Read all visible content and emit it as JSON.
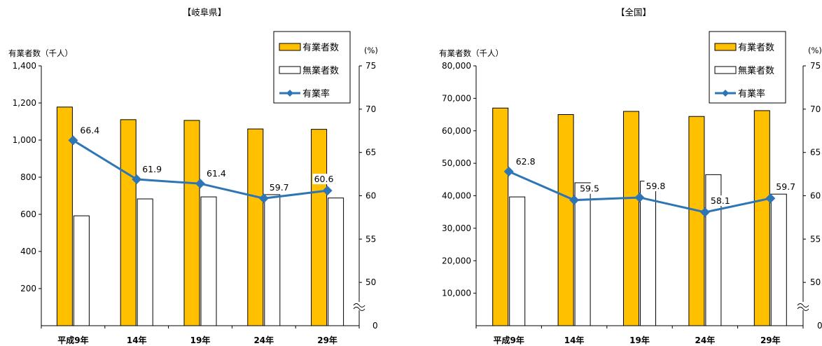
{
  "chart_data": [
    {
      "type": "bar",
      "title": "【岐阜県】",
      "ylabel": "有業者数（千人）",
      "y2label": "(%)",
      "categories": [
        "平成9年",
        "14年",
        "19年",
        "24年",
        "29年"
      ],
      "ylim": [
        0,
        1400
      ],
      "yticks": [
        200,
        400,
        600,
        800,
        1000,
        1200,
        1400
      ],
      "ytick_labels": [
        "200",
        "400",
        "600",
        "800",
        "1,000",
        "1,200",
        "1,400"
      ],
      "y2_range": [
        45,
        75
      ],
      "y2ticks": [
        50,
        55,
        60,
        65,
        70,
        75
      ],
      "y2_zero_label": "0",
      "series": [
        {
          "name": "有業者数",
          "kind": "bar",
          "color": "#FFC000",
          "values": [
            1178,
            1110,
            1106,
            1060,
            1058
          ]
        },
        {
          "name": "無業者数",
          "kind": "bar",
          "color": "#FFFFFF",
          "values": [
            592,
            683,
            694,
            706,
            688
          ]
        },
        {
          "name": "有業率",
          "kind": "line",
          "color": "#2E75B6",
          "values": [
            66.4,
            61.9,
            61.4,
            59.7,
            60.6
          ],
          "labels": [
            "66.4",
            "61.9",
            "61.4",
            "59.7",
            "60.6"
          ]
        }
      ],
      "grid": false,
      "legend": "top-right"
    },
    {
      "type": "bar",
      "title": "【全国】",
      "ylabel": "有業者数（千人）",
      "y2label": "(%)",
      "categories": [
        "平成9年",
        "14年",
        "19年",
        "24年",
        "29年"
      ],
      "ylim": [
        0,
        80000
      ],
      "yticks": [
        10000,
        20000,
        30000,
        40000,
        50000,
        60000,
        70000,
        80000
      ],
      "ytick_labels": [
        "10,000",
        "20,000",
        "30,000",
        "40,000",
        "50,000",
        "60,000",
        "70,000",
        "80,000"
      ],
      "y2_range": [
        45,
        75
      ],
      "y2ticks": [
        50,
        55,
        60,
        65,
        70,
        75
      ],
      "y2_zero_label": "0",
      "series": [
        {
          "name": "有業者数",
          "kind": "bar",
          "color": "#FFC000",
          "values": [
            67003,
            65009,
            65978,
            64421,
            66213
          ]
        },
        {
          "name": "無業者数",
          "kind": "bar",
          "color": "#FFFFFF",
          "values": [
            39650,
            44000,
            44500,
            46500,
            40500
          ]
        },
        {
          "name": "有業率",
          "kind": "line",
          "color": "#2E75B6",
          "values": [
            62.8,
            59.5,
            59.8,
            58.1,
            59.7
          ],
          "labels": [
            "62.8",
            "59.5",
            "59.8",
            "58.1",
            "59.7"
          ]
        }
      ],
      "grid": false,
      "legend": "top-right"
    }
  ]
}
